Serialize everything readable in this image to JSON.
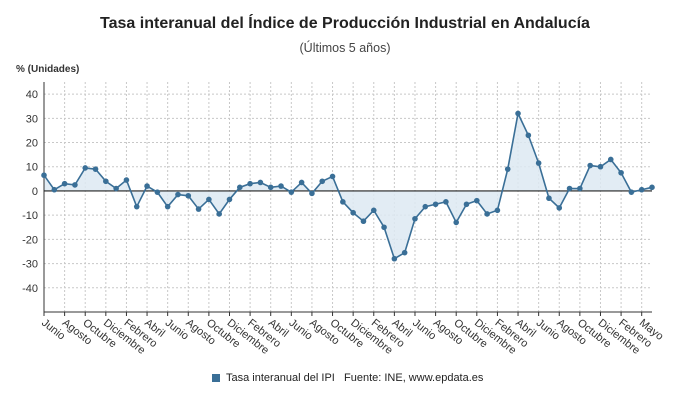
{
  "title": "Tasa interanual del Índice de Producción Industrial en Andalucía",
  "subtitle": "(Últimos 5 años)",
  "source": "Fuente: INE, www.epdata.es",
  "colors": {
    "line": "#3a6f97",
    "fill": "#dde9f2",
    "grid": "#c8c8c8",
    "axis": "#333333"
  },
  "chart_data": {
    "type": "area",
    "title": "Tasa interanual del Índice de Producción Industrial en Andalucía",
    "subtitle": "(Últimos 5 años)",
    "ylabel": "% (Unidades)",
    "xlabel": "",
    "ylim": [
      -50,
      45
    ],
    "yticks": [
      40,
      30,
      20,
      10,
      0,
      -10,
      -20,
      -30,
      -40
    ],
    "grid": true,
    "legend_position": "bottom",
    "x_labels": [
      "Junio",
      "Agosto",
      "Octubre",
      "Diciembre",
      "Febrero",
      "Abril",
      "Junio",
      "Agosto",
      "Octubre",
      "Diciembre",
      "Febrero",
      "Abril",
      "Junio",
      "Agosto",
      "Octubre",
      "Diciembre",
      "Febrero",
      "Abril",
      "Junio",
      "Agosto",
      "Octubre",
      "Diciembre",
      "Febrero",
      "Abril",
      "Junio",
      "Agosto",
      "Octubre",
      "Diciembre",
      "Febrero",
      "Mayo"
    ],
    "series": [
      {
        "name": "Tasa interanual del IPI",
        "values": [
          6.5,
          0.5,
          3,
          2.5,
          9.5,
          9,
          4,
          1,
          4.5,
          -6.5,
          2,
          -0.5,
          -6.5,
          -1.5,
          -2,
          -7.5,
          -3.5,
          -9.5,
          -3.5,
          1.5,
          3,
          3.5,
          1.5,
          2,
          -0.5,
          3.5,
          -1,
          4,
          6,
          -4.5,
          -9,
          -12.5,
          -8,
          -15,
          -28,
          -25.5,
          -11.5,
          -6.5,
          -5.5,
          -4.5,
          -13,
          -5.5,
          -4,
          -9.5,
          -8,
          9,
          32,
          23,
          11.5,
          -3,
          -7,
          1,
          1,
          10.5,
          10,
          13,
          7.5,
          -0.5,
          0.5,
          1.5
        ]
      }
    ]
  }
}
